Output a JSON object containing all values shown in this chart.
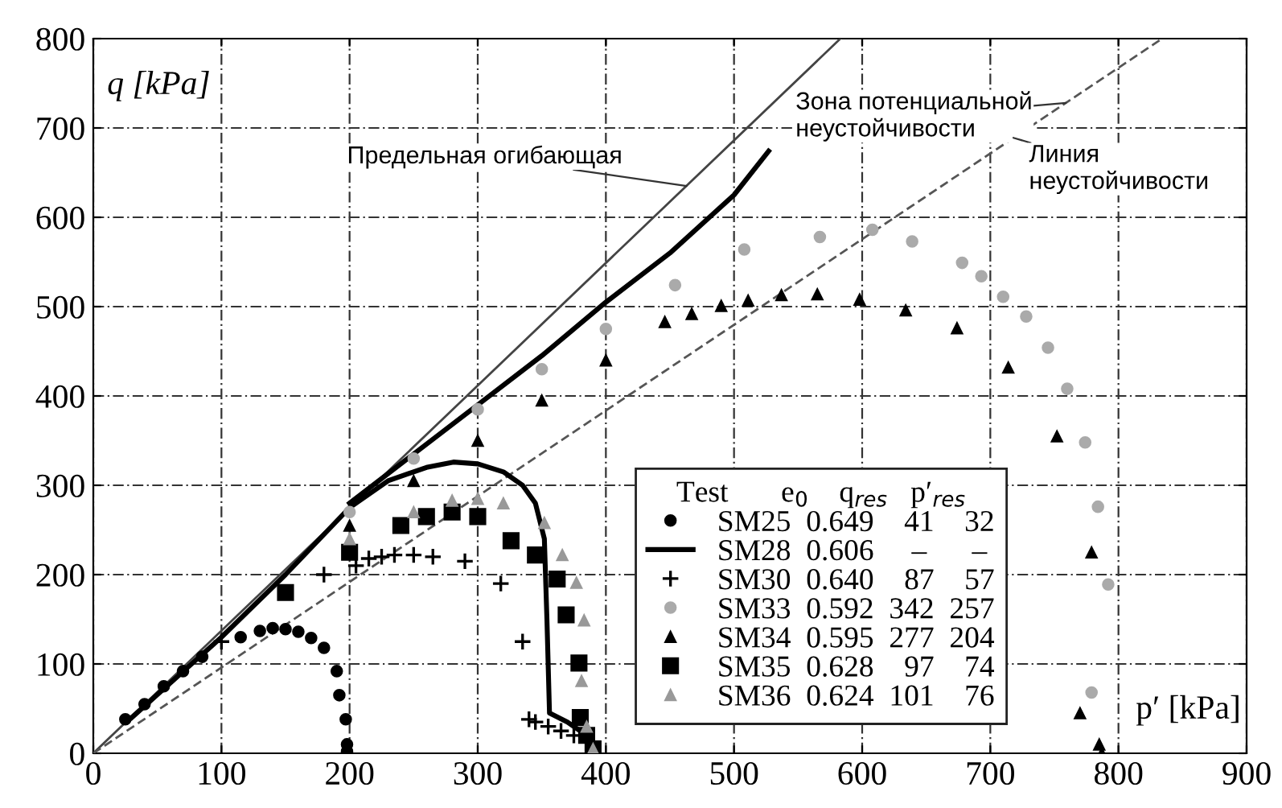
{
  "chart_data": {
    "type": "scatter",
    "xlabel": "p′ [kPa]",
    "ylabel": "q [kPa]",
    "xlim": [
      0,
      900
    ],
    "ylim": [
      0,
      800
    ],
    "xticks": [
      0,
      100,
      200,
      300,
      400,
      500,
      600,
      700,
      800,
      900
    ],
    "yticks": [
      0,
      100,
      200,
      300,
      400,
      500,
      600,
      700,
      800
    ],
    "grid": true,
    "legend": "bottom right",
    "legend_title": "Test       e$_{0}$    q$_{res}$   p′$_{res}$",
    "annotations": [
      {
        "text": "Предельная огибающая",
        "x": 463,
        "y": 635
      },
      {
        "text": "Зона потенциальной\nнеустойчивости",
        "x": 759,
        "y": 728
      },
      {
        "text": "Линия\nнеустойчивости",
        "x": 718,
        "y": 689
      }
    ],
    "series": [
      {
        "type": "line",
        "color": "#444444",
        "line_style": "solid",
        "marker": "none",
        "x": [
          0,
          583
        ],
        "values": [
          0,
          800
        ]
      },
      {
        "type": "line",
        "color": "#555555",
        "line_style": "dashed",
        "marker": "none",
        "x": [
          0,
          834
        ],
        "values": [
          0,
          800
        ]
      },
      {
        "type": "line",
        "color": "#000000",
        "line_style": "solid",
        "marker": "none",
        "x": [
          200,
          250,
          300,
          350,
          400,
          450,
          500,
          527
        ],
        "values": [
          280,
          335,
          390,
          445,
          505,
          560,
          625,
          674
        ]
      },
      {
        "name": "SM25  0.649    41    32",
        "color": "#000000",
        "marker": "circle",
        "x": [
          25,
          40,
          55,
          70,
          85,
          115,
          130,
          140,
          150,
          160,
          170,
          180,
          190,
          192,
          197,
          198,
          198
        ],
        "values": [
          38,
          55,
          75,
          92,
          108,
          130,
          137,
          140,
          139,
          136,
          129,
          118,
          92,
          65,
          38,
          10,
          2
        ]
      },
      {
        "name": "SM28  0.606     –      –",
        "type": "line",
        "color": "#000000",
        "line_style": "solid",
        "marker": "none",
        "x": [
          30,
          100,
          150,
          200,
          230,
          260,
          281,
          300,
          320,
          335,
          345,
          352,
          354,
          356,
          370,
          385,
          392
        ],
        "values": [
          40,
          130,
          200,
          275,
          305,
          320,
          326,
          324,
          315,
          300,
          280,
          240,
          150,
          45,
          35,
          20,
          0
        ]
      },
      {
        "name": "SM30  0.640    87    57",
        "color": "#000000",
        "marker": "cross",
        "x": [
          100,
          180,
          205,
          215,
          225,
          235,
          250,
          265,
          290,
          318,
          335,
          340,
          345,
          355,
          365,
          375
        ],
        "values": [
          125,
          200,
          210,
          218,
          220,
          222,
          222,
          220,
          215,
          190,
          125,
          38,
          35,
          30,
          25,
          20
        ]
      },
      {
        "name": "SM33  0.592  342  257",
        "color": "#aaaaaa",
        "marker": "circle",
        "x": [
          200,
          250,
          300,
          350,
          400,
          454,
          508,
          567,
          608,
          639,
          678,
          693,
          710,
          728,
          745,
          760,
          774,
          784,
          792,
          779
        ],
        "values": [
          270,
          330,
          385,
          430,
          475,
          524,
          564,
          578,
          586,
          573,
          549,
          534,
          511,
          489,
          454,
          408,
          348,
          276,
          189,
          68
        ]
      },
      {
        "name": "SM34  0.595  277  204",
        "color": "#000000",
        "marker": "triangle",
        "x": [
          200,
          250,
          300,
          350,
          400,
          446,
          467,
          490,
          511,
          537,
          565,
          598,
          634,
          674,
          714,
          752,
          779,
          770,
          785,
          787
        ],
        "values": [
          255,
          305,
          350,
          395,
          440,
          483,
          492,
          501,
          507,
          513,
          514,
          508,
          496,
          476,
          432,
          355,
          225,
          45,
          10,
          0
        ]
      },
      {
        "name": "SM35  0.628    97    74",
        "color": "#000000",
        "marker": "square",
        "x": [
          150,
          200,
          240,
          260,
          280,
          300,
          326,
          345,
          362,
          369,
          379,
          380,
          385,
          390
        ],
        "values": [
          180,
          225,
          255,
          265,
          270,
          265,
          238,
          222,
          195,
          155,
          101,
          40,
          20,
          5
        ]
      },
      {
        "name": "SM36  0.624  101    76",
        "color": "#999999",
        "marker": "triangle",
        "x": [
          200,
          250,
          280,
          300,
          320,
          352,
          366,
          377,
          383,
          381,
          385,
          390
        ],
        "values": [
          240,
          270,
          283,
          285,
          280,
          258,
          222,
          191,
          149,
          81,
          30,
          5
        ]
      }
    ]
  }
}
